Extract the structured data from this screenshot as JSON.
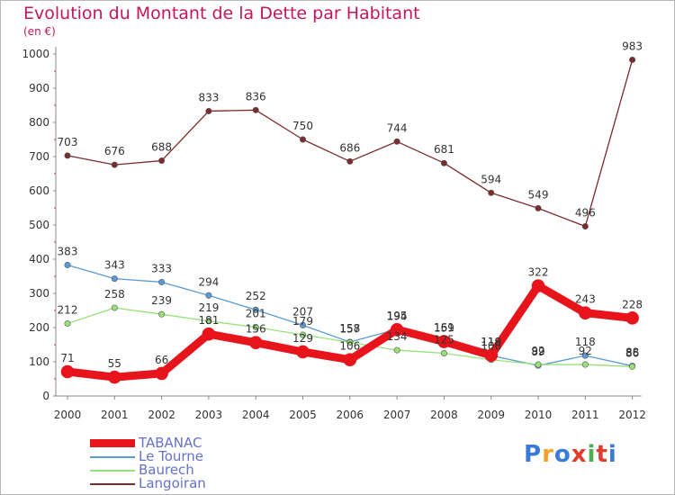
{
  "title": "Evolution du Montant de la Dette par Habitant",
  "unit_label": "(en €)",
  "brand": {
    "logo_text": "Proxiti",
    "colors": [
      "#3a7bd5",
      "#f2a22c",
      "#3a7bd5",
      "#e23c2c",
      "#4caf50",
      "#e23c2c",
      "#3a7bd5"
    ]
  },
  "chart_data": {
    "type": "line",
    "title": "Evolution du Montant de la Dette par Habitant",
    "ylabel": "(en €)",
    "xlabel": "",
    "ylim": [
      0,
      1000
    ],
    "yticks": [
      0,
      100,
      200,
      300,
      400,
      500,
      600,
      700,
      800,
      900,
      1000
    ],
    "categories": [
      "2000",
      "2001",
      "2002",
      "2003",
      "2004",
      "2005",
      "2006",
      "2007",
      "2008",
      "2009",
      "2010",
      "2011",
      "2012"
    ],
    "grid": false,
    "legend": "bottom-left",
    "series": [
      {
        "name": "TABANAC",
        "color": "#e8141b",
        "emphasis": true,
        "values": [
          71,
          55,
          66,
          181,
          156,
          129,
          106,
          194,
          159,
          119,
          322,
          243,
          228
        ]
      },
      {
        "name": "Le Tourne",
        "color": "#5b9bd5",
        "emphasis": false,
        "values": [
          383,
          343,
          333,
          294,
          252,
          207,
          158,
          195,
          161,
          118,
          89,
          118,
          88
        ]
      },
      {
        "name": "Baurech",
        "color": "#99e07a",
        "emphasis": false,
        "values": [
          212,
          258,
          239,
          219,
          201,
          179,
          157,
          134,
          125,
          106,
          92,
          92,
          86
        ]
      },
      {
        "name": "Langoiran",
        "color": "#7b2c2c",
        "emphasis": false,
        "values": [
          703,
          676,
          688,
          833,
          836,
          750,
          686,
          744,
          681,
          594,
          549,
          496,
          983
        ]
      }
    ]
  }
}
